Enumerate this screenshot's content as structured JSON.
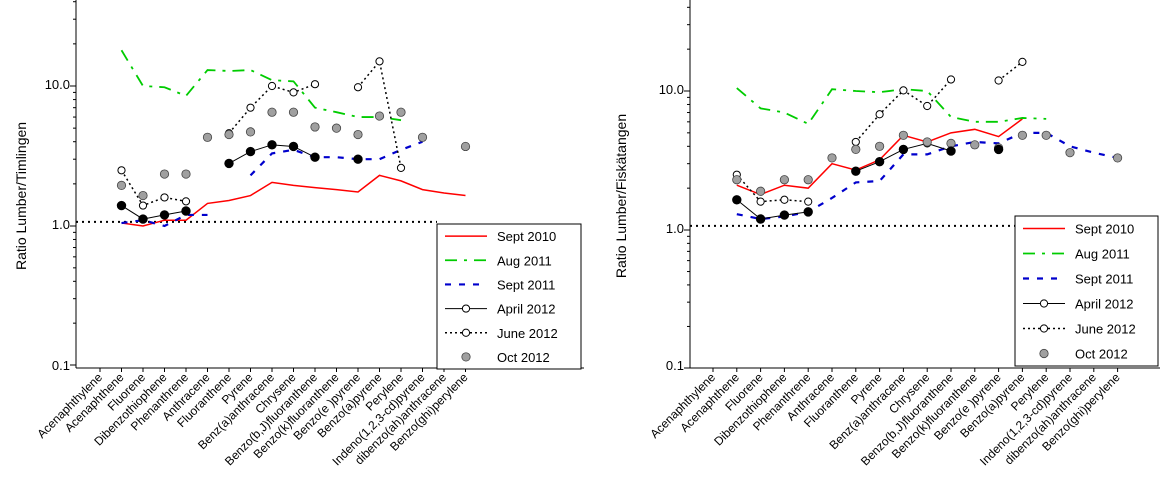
{
  "chart_data": [
    {
      "type": "line",
      "ylabel": "Ratio Lumber/Timlingen",
      "yscale": "log",
      "ylim": [
        0.1,
        40
      ],
      "yticks": [
        "0.1",
        "1.0",
        "10.0"
      ],
      "reference_line": 1.07,
      "legend_position": "bottom-right",
      "categories": [
        "Acenaphthylene",
        "Acenaphthene",
        "Fluorene",
        "Dibenzothiophene",
        "Phenanthrene",
        "Anthracene",
        "Fluoranthene",
        "Pyrene",
        "Benz(a)anthracene",
        "Chrysene",
        "Benzo(b,J)fluoranthene",
        "Benzo(k)fluoranthene",
        "Benzo(e )pyrene",
        "Benzo(a)pyrene",
        "Perylene",
        "Indeno(1,2,3-cd)pyrene",
        "dibenzo(ah)anthracene",
        "Benzo(ghi)perylene"
      ],
      "series": [
        {
          "name": "Sept 2010",
          "style": "solid-red",
          "color": "#ff0000",
          "values": [
            null,
            1.05,
            1.0,
            1.1,
            1.1,
            1.45,
            1.52,
            1.65,
            2.05,
            1.95,
            1.88,
            1.82,
            1.75,
            2.3,
            2.1,
            1.82,
            1.72,
            1.65
          ]
        },
        {
          "name": "Aug 2011",
          "style": "dashdot-green",
          "color": "#00cc00",
          "values": [
            null,
            18,
            10,
            9.8,
            8.5,
            13,
            12.8,
            13,
            11,
            10.8,
            7,
            6.5,
            6,
            6,
            5.7,
            null,
            null,
            null
          ]
        },
        {
          "name": "Sept 2011",
          "style": "dashed-blue",
          "color": "#0000cc",
          "values": [
            null,
            1.05,
            1.1,
            1.0,
            1.2,
            1.2,
            null,
            2.3,
            3.3,
            3.5,
            3.1,
            3.1,
            3.0,
            3.0,
            3.5,
            4.0,
            null,
            null
          ]
        },
        {
          "name": "April 2012",
          "style": "solid-black-hollow",
          "color": "#000000",
          "values": [
            null,
            1.4,
            1.12,
            1.2,
            1.28,
            null,
            2.8,
            3.4,
            3.8,
            3.7,
            3.1,
            null,
            3.0,
            null,
            null,
            null,
            null,
            null
          ]
        },
        {
          "name": "June 2012",
          "style": "dotted-black-hollow",
          "color": "#000000",
          "values": [
            null,
            2.5,
            1.4,
            1.6,
            1.5,
            null,
            4.6,
            7,
            10,
            9,
            10.3,
            null,
            9.8,
            15,
            2.6,
            null,
            null,
            null
          ]
        },
        {
          "name": "Oct 2012",
          "style": "gray-filled-markers",
          "color": "#a0a0a0",
          "values": [
            null,
            1.95,
            1.65,
            2.35,
            2.35,
            4.3,
            4.5,
            4.7,
            6.5,
            6.5,
            5.1,
            5.0,
            4.5,
            6.1,
            6.5,
            4.3,
            null,
            3.7
          ]
        }
      ],
      "filled_black_markers": [
        [
          1,
          1.4
        ],
        [
          2,
          1.12
        ],
        [
          3,
          1.2
        ],
        [
          4,
          1.28
        ],
        [
          6,
          2.8
        ],
        [
          7,
          3.4
        ],
        [
          8,
          3.8
        ],
        [
          9,
          3.7
        ],
        [
          10,
          3.1
        ],
        [
          12,
          3.0
        ]
      ]
    },
    {
      "type": "line",
      "ylabel": "Ratio Lumber/Fiskätangen",
      "yscale": "log",
      "ylim": [
        0.1,
        40
      ],
      "yticks": [
        "0.1",
        "1.0",
        "10.0"
      ],
      "reference_line": 1.07,
      "legend_position": "bottom-right",
      "categories": [
        "Acenaphthylene",
        "Acenaphthene",
        "Fluorene",
        "Dibenzothiophene",
        "Phenanthrene",
        "Anthracene",
        "Fluoranthene",
        "Pyrene",
        "Benz(a)anthracene",
        "Chrysene",
        "Benzo(b,J)fluoranthene",
        "Benzo(k)fluoranthene",
        "Benzo(e )pyrene",
        "Benzo(a)pyrene",
        "Perylene",
        "Indeno(1,2,3-cd)pyrene",
        "dibenzo(ah)anthracene",
        "Benzo(ghi)perylene"
      ],
      "series": [
        {
          "name": "Sept 2010",
          "style": "solid-red",
          "color": "#ff0000",
          "values": [
            null,
            2.1,
            1.8,
            2.1,
            2.0,
            3.0,
            2.7,
            3.2,
            4.8,
            4.3,
            5.0,
            5.3,
            4.7,
            6.3,
            null,
            null,
            null,
            null
          ]
        },
        {
          "name": "Aug 2011",
          "style": "dashdot-green",
          "color": "#00cc00",
          "values": [
            null,
            10.5,
            7.5,
            7.0,
            5.8,
            10.3,
            10,
            9.8,
            10.3,
            10,
            6.5,
            6.0,
            6.0,
            6.4,
            6.3,
            null,
            null,
            null
          ]
        },
        {
          "name": "Sept 2011",
          "style": "dashed-blue",
          "color": "#0000cc",
          "values": [
            null,
            1.3,
            1.2,
            1.25,
            1.35,
            1.7,
            2.2,
            2.25,
            3.5,
            3.5,
            4.0,
            4.3,
            4.2,
            5.0,
            5.0,
            4.0,
            3.6,
            3.3
          ]
        },
        {
          "name": "April 2012",
          "style": "solid-black-hollow",
          "color": "#000000",
          "values": [
            null,
            1.65,
            1.2,
            1.28,
            1.35,
            null,
            2.65,
            3.1,
            3.8,
            4.2,
            3.7,
            null,
            3.8,
            null,
            null,
            null,
            null,
            null
          ]
        },
        {
          "name": "June 2012",
          "style": "dotted-black-hollow",
          "color": "#000000",
          "values": [
            null,
            2.5,
            1.6,
            1.65,
            1.6,
            null,
            4.3,
            6.8,
            10.1,
            7.8,
            12.1,
            null,
            11.9,
            16.2,
            null,
            null,
            null,
            null
          ]
        },
        {
          "name": "Oct 2012",
          "style": "gray-filled-markers",
          "color": "#a0a0a0",
          "values": [
            null,
            2.3,
            1.9,
            2.3,
            2.3,
            3.3,
            3.8,
            4.0,
            4.8,
            4.3,
            4.2,
            4.1,
            3.9,
            4.8,
            4.8,
            3.6,
            null,
            3.3
          ]
        }
      ],
      "filled_black_markers": [
        [
          1,
          1.65
        ],
        [
          2,
          1.2
        ],
        [
          3,
          1.28
        ],
        [
          4,
          1.35
        ],
        [
          6,
          2.65
        ],
        [
          7,
          3.1
        ],
        [
          8,
          3.8
        ],
        [
          10,
          3.7
        ],
        [
          12,
          3.8
        ]
      ]
    }
  ]
}
